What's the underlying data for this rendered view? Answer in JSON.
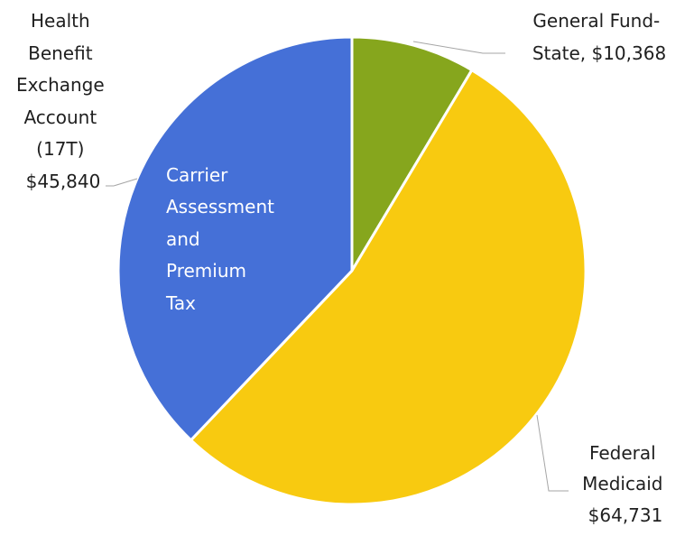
{
  "chart_data": {
    "type": "pie",
    "title": "",
    "slices": [
      {
        "label": "General Fund-State",
        "value": 10368,
        "color": "#86a61d",
        "label_lines": [
          "General Fund-",
          "State, $10,368"
        ]
      },
      {
        "label": "Federal Medicaid",
        "value": 64731,
        "color": "#f8ca10",
        "label_lines": [
          "Federal",
          "Medicaid",
          "$64,731"
        ]
      },
      {
        "label": "Health Benefit Exchange Account (17T)",
        "value": 45840,
        "color": "#4570d7",
        "label_lines": [
          "Health",
          "Benefit",
          "Exchange",
          "Account",
          "(17T)",
          "$45,840"
        ]
      }
    ],
    "annotation": {
      "slice": "Health Benefit Exchange Account (17T)",
      "lines": [
        "Carrier",
        "Assessment",
        "and",
        "Premium",
        "Tax"
      ]
    }
  }
}
